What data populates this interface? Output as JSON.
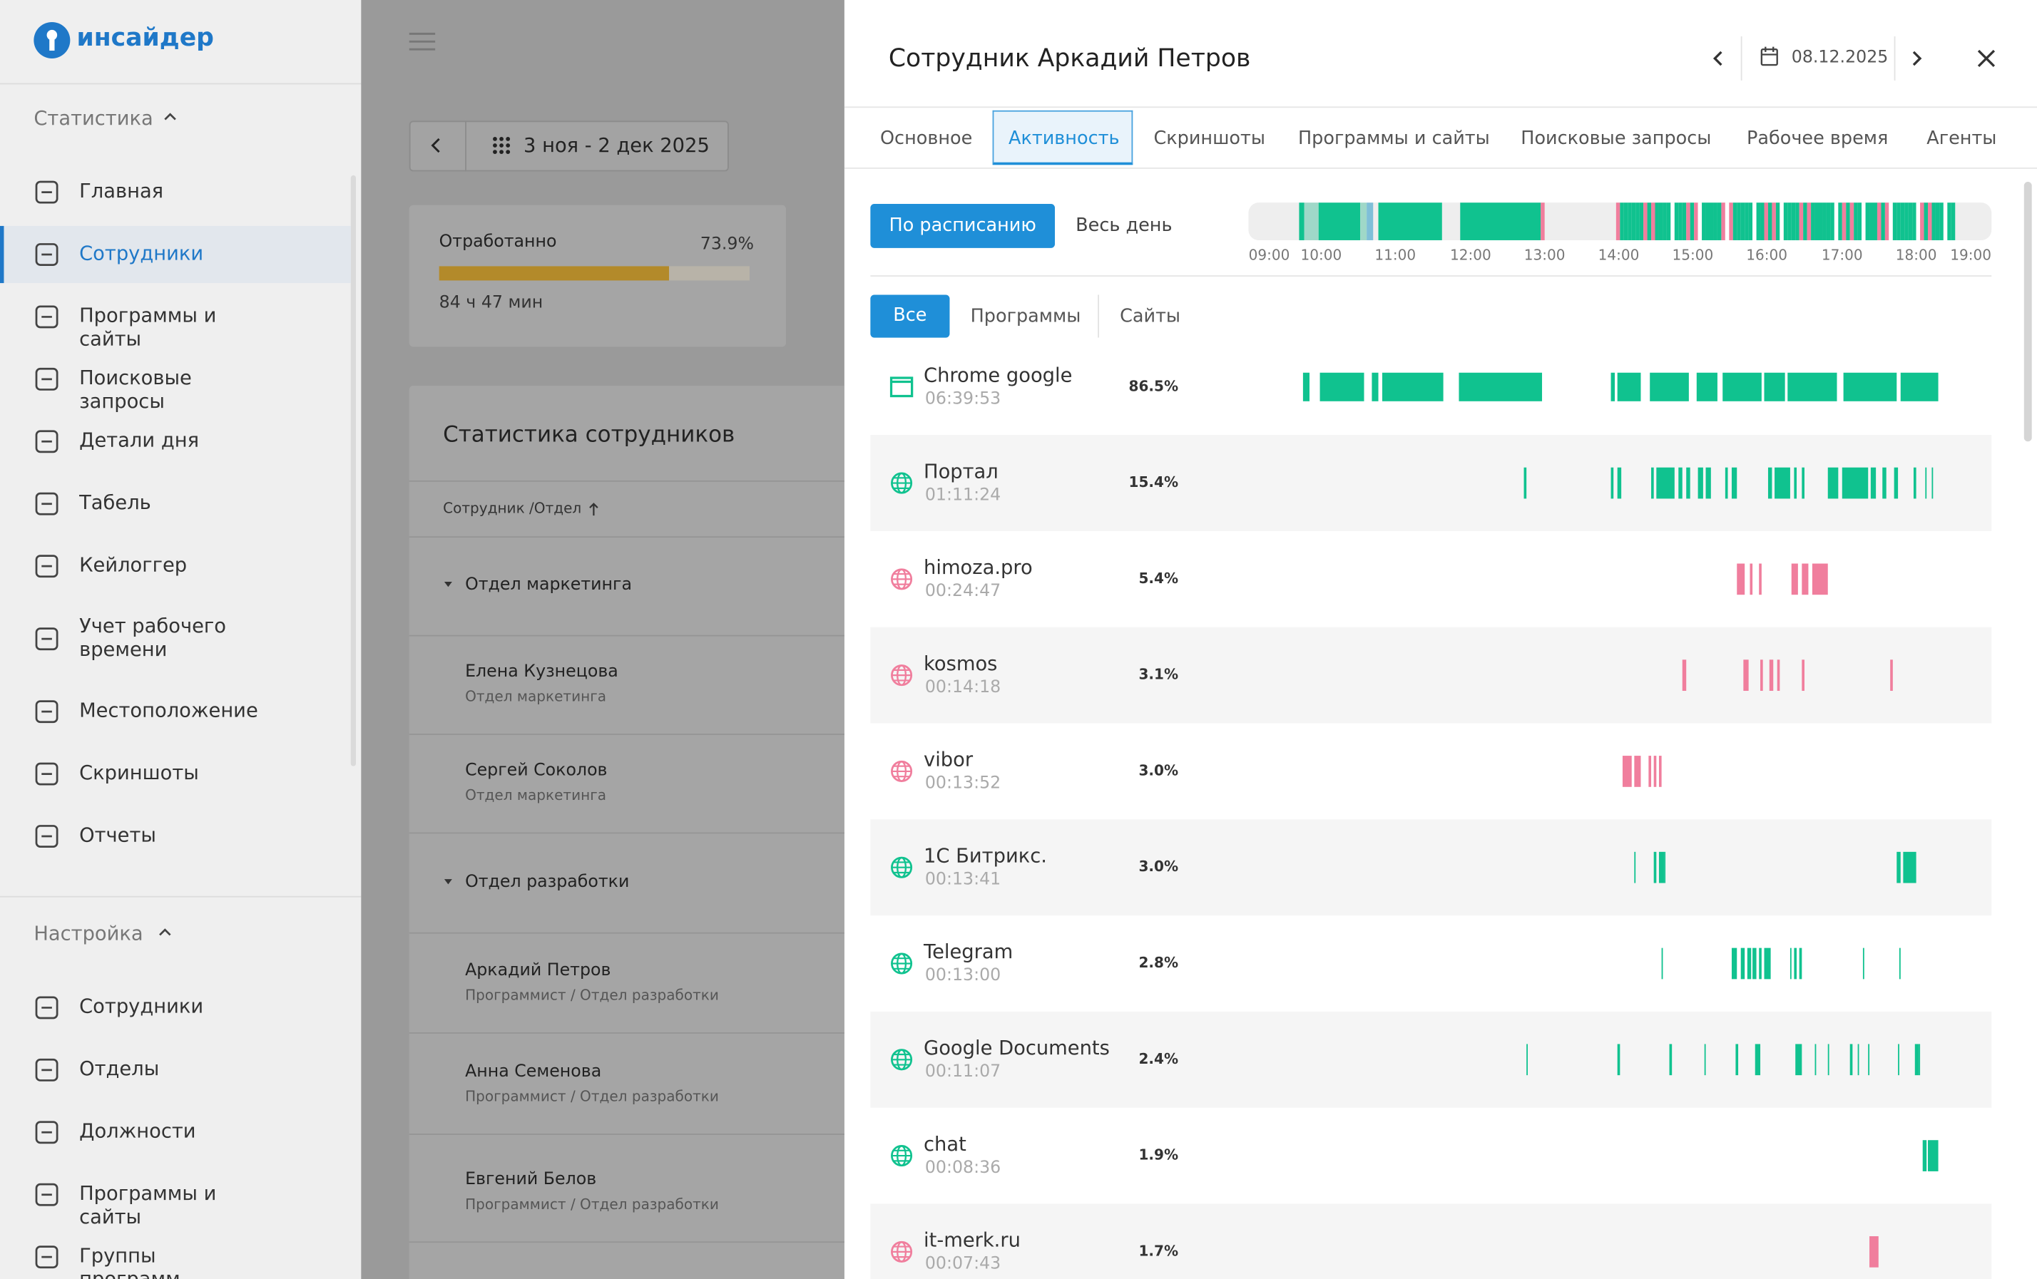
{
  "sidebar": {
    "logo": "инсайдер",
    "sections": [
      {
        "title": "Статистика",
        "items": [
          "Главная",
          "Сотрудники",
          "Программы и сайты",
          "Поисковые запросы",
          "Детали дня",
          "Табель",
          "Кейлоггер",
          "Учет рабочего времени",
          "Местоположение",
          "Скриншоты",
          "Отчеты"
        ]
      },
      {
        "title": "Настройка",
        "items": [
          "Сотрудники",
          "Отделы",
          "Должности",
          "Программы и сайты",
          "Группы программ"
        ]
      }
    ]
  },
  "main": {
    "date_range": "3 ноя - 2 дек 2025",
    "worked": {
      "label": "Отработанно",
      "percent": "73.9%",
      "total": "84 ч 47 мин"
    },
    "stats": {
      "title": "Статистика сотрудников",
      "column": "Сотрудник /Отдел",
      "rows": [
        {
          "group": "Отдел маркетинга"
        },
        {
          "name": "Елена Кузнецова",
          "role": "Отдел маркетинга"
        },
        {
          "name": "Сергей Соколов",
          "role": "Отдел маркетинга"
        },
        {
          "group": "Отдел разработки"
        },
        {
          "name": "Аркадий  Петров",
          "role": "Программист / Отдел разработки"
        },
        {
          "name": "Анна Семенова",
          "role": "Программист / Отдел разработки"
        },
        {
          "name": "Евгений Белов",
          "role": "Программист / Отдел разработки"
        }
      ]
    }
  },
  "panel": {
    "title": "Сотрудник Аркадий  Петров",
    "date": "08.12.2025",
    "tabs": [
      "Основное",
      "Активность",
      "Скриншоты",
      "Программы и сайты",
      "Поисковые запросы",
      "Рабочее время",
      "Агенты"
    ],
    "mode_buttons": [
      "По расписанию",
      "Весь день"
    ],
    "hours": [
      "09:00",
      "10:00",
      "11:00",
      "12:00",
      "13:00",
      "14:00",
      "15:00",
      "16:00",
      "17:00",
      "18:00",
      "19:00"
    ],
    "filters": [
      "Все",
      "Программы",
      "Сайты"
    ],
    "apps": [
      {
        "name": "Chrome google",
        "time": "06:39:53",
        "share": "86.5%"
      },
      {
        "name": "Портал",
        "time": "01:11:24",
        "share": "15.4%"
      },
      {
        "name": "himoza.pro",
        "time": "00:24:47",
        "share": "5.4%"
      },
      {
        "name": "kosmos",
        "time": "00:14:18",
        "share": "3.1%"
      },
      {
        "name": "vibor",
        "time": "00:13:52",
        "share": "3.0%"
      },
      {
        "name": "1С Битрикс.",
        "time": "00:13:41",
        "share": "3.0%"
      },
      {
        "name": "Telegram",
        "time": "00:13:00",
        "share": "2.8%"
      },
      {
        "name": "Google Documents",
        "time": "00:11:07",
        "share": "2.4%"
      },
      {
        "name": "chat",
        "time": "00:08:36",
        "share": "1.9%"
      },
      {
        "name": "it-merk.ru",
        "time": "00:07:43",
        "share": "1.7%"
      }
    ]
  }
}
